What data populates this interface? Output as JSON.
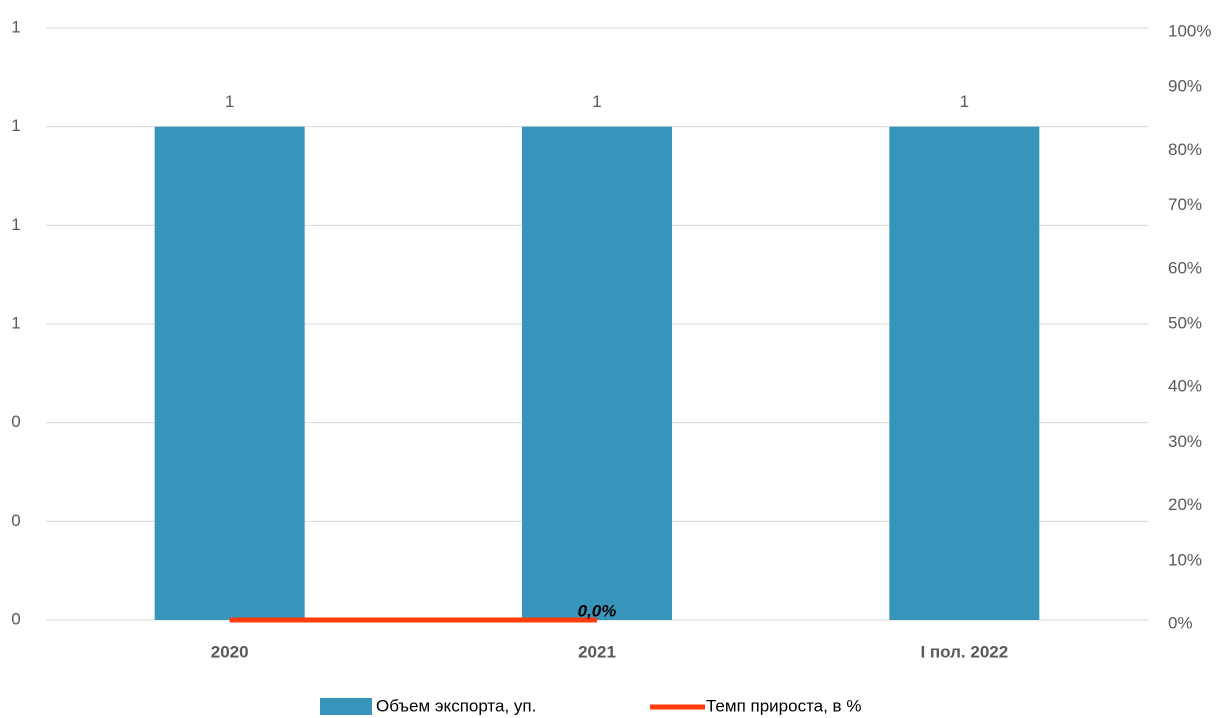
{
  "chart_data": {
    "type": "bar",
    "categories": [
      "2020",
      "2021",
      "I пол. 2022"
    ],
    "series": [
      {
        "name": "Объем экспорта, уп.",
        "type": "bar",
        "color": "#3795bc",
        "values": [
          1,
          1,
          1
        ]
      },
      {
        "name": "Темп прироста, в %",
        "type": "line",
        "axis": "y2",
        "color": "#ff3b0a",
        "values": [
          0,
          0,
          null
        ],
        "value_labels": [
          null,
          "0,0%",
          null
        ]
      }
    ],
    "ylim": [
      0,
      1.2
    ],
    "yticks": [
      0,
      {
        "value": 0.2,
        "label": "0"
      },
      {
        "value": 0.4,
        "label": "0"
      },
      {
        "value": 0.6,
        "label": "1"
      },
      {
        "value": 0.8,
        "label": "1"
      },
      1,
      {
        "value": 1.2,
        "label": "1"
      }
    ],
    "y2lim": [
      0,
      100
    ],
    "y2ticks": [
      {
        "value": 0,
        "label": "0%"
      },
      {
        "value": 10,
        "label": "10%"
      },
      {
        "value": 20,
        "label": "20%"
      },
      {
        "value": 30,
        "label": "30%"
      },
      {
        "value": 40,
        "label": "40%"
      },
      {
        "value": 50,
        "label": "50%"
      },
      {
        "value": 60,
        "label": "60%"
      },
      {
        "value": 70,
        "label": "70%"
      },
      {
        "value": 80,
        "label": "80%"
      },
      {
        "value": 90,
        "label": "90%"
      },
      {
        "value": 100,
        "label": "100%"
      }
    ],
    "grid": true,
    "legend": "bottom"
  }
}
